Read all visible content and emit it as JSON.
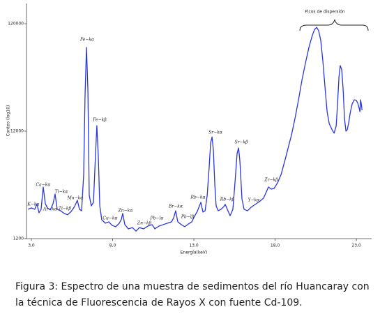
{
  "chart_data": {
    "type": "line",
    "log_y": true,
    "grid": false,
    "color": "#2a36dc",
    "xlabel": "Energía(keV)",
    "ylabel": "Conteo (log10)",
    "xlim": [
      2.7,
      23.94
    ],
    "ylim": [
      1200,
      185000
    ],
    "xticks": [
      {
        "value": 3,
        "label": "3,0"
      },
      {
        "value": 8,
        "label": "8,0"
      },
      {
        "value": 13,
        "label": "13,0"
      },
      {
        "value": 18,
        "label": "18,0"
      },
      {
        "value": 23,
        "label": "23,0"
      }
    ],
    "yticks": [
      1200,
      12000,
      120000
    ],
    "x": [
      2.79,
      3.0,
      3.21,
      3.34,
      3.47,
      3.6,
      3.73,
      3.86,
      3.99,
      4.16,
      4.33,
      4.46,
      4.59,
      4.8,
      5.02,
      5.23,
      5.45,
      5.66,
      5.83,
      5.96,
      6.09,
      6.22,
      6.3,
      6.39,
      6.48,
      6.56,
      6.69,
      6.82,
      6.95,
      7.03,
      7.12,
      7.21,
      7.33,
      7.55,
      7.76,
      7.98,
      8.19,
      8.41,
      8.54,
      8.62,
      8.75,
      8.97,
      9.22,
      9.44,
      9.65,
      9.91,
      10.17,
      10.43,
      10.6,
      10.85,
      11.11,
      11.37,
      11.63,
      11.76,
      11.88,
      12.01,
      12.23,
      12.44,
      12.66,
      12.87,
      13.04,
      13.21,
      13.34,
      13.43,
      13.56,
      13.69,
      13.82,
      13.94,
      14.03,
      14.12,
      14.2,
      14.29,
      14.37,
      14.5,
      14.67,
      14.85,
      14.93,
      15.06,
      15.23,
      15.4,
      15.53,
      15.66,
      15.75,
      15.83,
      15.96,
      16.09,
      16.3,
      16.52,
      16.78,
      17.03,
      17.29,
      17.46,
      17.59,
      17.76,
      17.94,
      18.15,
      18.37,
      18.58,
      18.79,
      19.01,
      19.22,
      19.44,
      19.65,
      19.87,
      20.08,
      20.3,
      20.43,
      20.56,
      20.68,
      20.81,
      20.94,
      21.07,
      21.2,
      21.33,
      21.5,
      21.63,
      21.76,
      21.84,
      21.93,
      22.01,
      22.1,
      22.19,
      22.27,
      22.36,
      22.44,
      22.53,
      22.62,
      22.74,
      22.87,
      23.0,
      23.09,
      23.18,
      23.22,
      23.26,
      23.31,
      23.35
    ],
    "values": [
      2250,
      2320,
      2250,
      2530,
      2090,
      2250,
      3630,
      2530,
      2320,
      2220,
      2530,
      3120,
      2250,
      2180,
      2060,
      2000,
      2150,
      2390,
      2730,
      2250,
      2180,
      4750,
      24600,
      72200,
      28600,
      3030,
      2420,
      2610,
      7440,
      13500,
      6900,
      2420,
      1800,
      1670,
      1720,
      1590,
      1550,
      1670,
      1820,
      2060,
      1620,
      1480,
      1520,
      1410,
      1520,
      1480,
      1570,
      1620,
      1480,
      1570,
      1620,
      1670,
      1720,
      1880,
      2180,
      1720,
      1620,
      1550,
      1640,
      1720,
      1940,
      2150,
      2420,
      2610,
      2120,
      2180,
      3030,
      5510,
      9310,
      10600,
      8010,
      3790,
      2420,
      2180,
      2250,
      2390,
      2500,
      2250,
      1960,
      2250,
      3970,
      7440,
      8380,
      6400,
      2810,
      2250,
      2180,
      2350,
      2500,
      2650,
      2860,
      3270,
      3630,
      3470,
      3520,
      3970,
      4750,
      6210,
      8260,
      11100,
      15700,
      23500,
      35700,
      51900,
      72200,
      94500,
      106000,
      111000,
      103000,
      83800,
      53500,
      30800,
      18200,
      14100,
      12400,
      11500,
      13500,
      21200,
      38500,
      48900,
      44700,
      28600,
      15700,
      12000,
      12400,
      14400,
      17700,
      21500,
      23500,
      23200,
      21800,
      19400,
      18200,
      23500,
      21200,
      18800
    ],
    "annotations": [
      "K−kα",
      "Ca−kα",
      "Ar−kα",
      "Ti−kα",
      "Ti−kβ",
      "Mn−kα",
      "Fe−kα",
      "Fe−kβ",
      "Cu−kα",
      "Zn−kα",
      "Zn−kβ",
      "Pb−lα",
      "Br−kα",
      "Pb−lβ",
      "Rb−kα",
      "Sr−kα",
      "Rb−kβ",
      "Sr−kβ",
      "Y−kα",
      "Zr−kβ",
      "Picos de dispersión"
    ]
  },
  "caption": "Figura 3: Espectro de una muestra de sedimentos del río Huancaray con la técnica de Fluorescencia de Rayos X con fuente Cd-109."
}
